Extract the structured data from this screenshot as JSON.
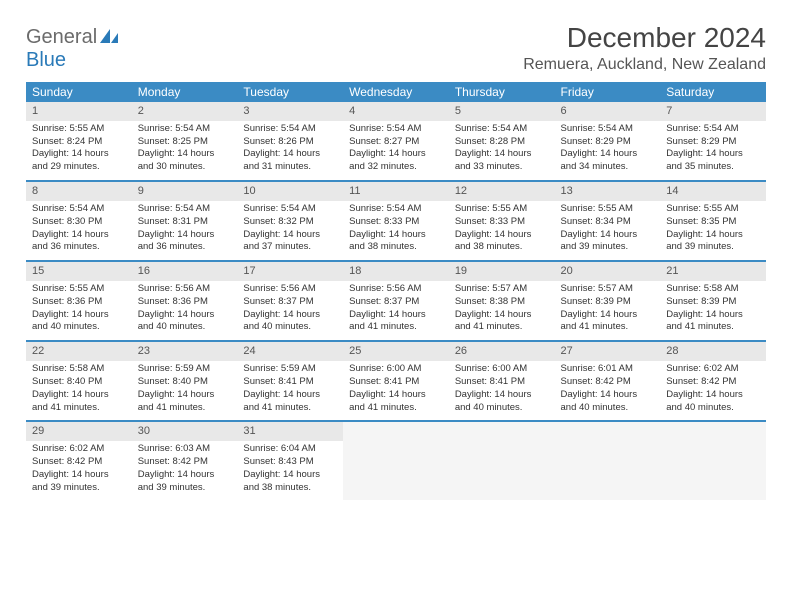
{
  "logo": {
    "text1": "General",
    "text2": "Blue"
  },
  "title": "December 2024",
  "location": "Remuera, Auckland, New Zealand",
  "colors": {
    "header_bg": "#3b8bc4",
    "header_text": "#ffffff",
    "border": "#3b8bc4",
    "daynum_bg": "#e8e8e8",
    "body_bg": "#ffffff",
    "logo_gray": "#6b6b6b",
    "logo_blue": "#2a7ab8"
  },
  "weekdays": [
    "Sunday",
    "Monday",
    "Tuesday",
    "Wednesday",
    "Thursday",
    "Friday",
    "Saturday"
  ],
  "days": [
    {
      "n": "1",
      "sr": "Sunrise: 5:55 AM",
      "ss": "Sunset: 8:24 PM",
      "dl": "Daylight: 14 hours and 29 minutes."
    },
    {
      "n": "2",
      "sr": "Sunrise: 5:54 AM",
      "ss": "Sunset: 8:25 PM",
      "dl": "Daylight: 14 hours and 30 minutes."
    },
    {
      "n": "3",
      "sr": "Sunrise: 5:54 AM",
      "ss": "Sunset: 8:26 PM",
      "dl": "Daylight: 14 hours and 31 minutes."
    },
    {
      "n": "4",
      "sr": "Sunrise: 5:54 AM",
      "ss": "Sunset: 8:27 PM",
      "dl": "Daylight: 14 hours and 32 minutes."
    },
    {
      "n": "5",
      "sr": "Sunrise: 5:54 AM",
      "ss": "Sunset: 8:28 PM",
      "dl": "Daylight: 14 hours and 33 minutes."
    },
    {
      "n": "6",
      "sr": "Sunrise: 5:54 AM",
      "ss": "Sunset: 8:29 PM",
      "dl": "Daylight: 14 hours and 34 minutes."
    },
    {
      "n": "7",
      "sr": "Sunrise: 5:54 AM",
      "ss": "Sunset: 8:29 PM",
      "dl": "Daylight: 14 hours and 35 minutes."
    },
    {
      "n": "8",
      "sr": "Sunrise: 5:54 AM",
      "ss": "Sunset: 8:30 PM",
      "dl": "Daylight: 14 hours and 36 minutes."
    },
    {
      "n": "9",
      "sr": "Sunrise: 5:54 AM",
      "ss": "Sunset: 8:31 PM",
      "dl": "Daylight: 14 hours and 36 minutes."
    },
    {
      "n": "10",
      "sr": "Sunrise: 5:54 AM",
      "ss": "Sunset: 8:32 PM",
      "dl": "Daylight: 14 hours and 37 minutes."
    },
    {
      "n": "11",
      "sr": "Sunrise: 5:54 AM",
      "ss": "Sunset: 8:33 PM",
      "dl": "Daylight: 14 hours and 38 minutes."
    },
    {
      "n": "12",
      "sr": "Sunrise: 5:55 AM",
      "ss": "Sunset: 8:33 PM",
      "dl": "Daylight: 14 hours and 38 minutes."
    },
    {
      "n": "13",
      "sr": "Sunrise: 5:55 AM",
      "ss": "Sunset: 8:34 PM",
      "dl": "Daylight: 14 hours and 39 minutes."
    },
    {
      "n": "14",
      "sr": "Sunrise: 5:55 AM",
      "ss": "Sunset: 8:35 PM",
      "dl": "Daylight: 14 hours and 39 minutes."
    },
    {
      "n": "15",
      "sr": "Sunrise: 5:55 AM",
      "ss": "Sunset: 8:36 PM",
      "dl": "Daylight: 14 hours and 40 minutes."
    },
    {
      "n": "16",
      "sr": "Sunrise: 5:56 AM",
      "ss": "Sunset: 8:36 PM",
      "dl": "Daylight: 14 hours and 40 minutes."
    },
    {
      "n": "17",
      "sr": "Sunrise: 5:56 AM",
      "ss": "Sunset: 8:37 PM",
      "dl": "Daylight: 14 hours and 40 minutes."
    },
    {
      "n": "18",
      "sr": "Sunrise: 5:56 AM",
      "ss": "Sunset: 8:37 PM",
      "dl": "Daylight: 14 hours and 41 minutes."
    },
    {
      "n": "19",
      "sr": "Sunrise: 5:57 AM",
      "ss": "Sunset: 8:38 PM",
      "dl": "Daylight: 14 hours and 41 minutes."
    },
    {
      "n": "20",
      "sr": "Sunrise: 5:57 AM",
      "ss": "Sunset: 8:39 PM",
      "dl": "Daylight: 14 hours and 41 minutes."
    },
    {
      "n": "21",
      "sr": "Sunrise: 5:58 AM",
      "ss": "Sunset: 8:39 PM",
      "dl": "Daylight: 14 hours and 41 minutes."
    },
    {
      "n": "22",
      "sr": "Sunrise: 5:58 AM",
      "ss": "Sunset: 8:40 PM",
      "dl": "Daylight: 14 hours and 41 minutes."
    },
    {
      "n": "23",
      "sr": "Sunrise: 5:59 AM",
      "ss": "Sunset: 8:40 PM",
      "dl": "Daylight: 14 hours and 41 minutes."
    },
    {
      "n": "24",
      "sr": "Sunrise: 5:59 AM",
      "ss": "Sunset: 8:41 PM",
      "dl": "Daylight: 14 hours and 41 minutes."
    },
    {
      "n": "25",
      "sr": "Sunrise: 6:00 AM",
      "ss": "Sunset: 8:41 PM",
      "dl": "Daylight: 14 hours and 41 minutes."
    },
    {
      "n": "26",
      "sr": "Sunrise: 6:00 AM",
      "ss": "Sunset: 8:41 PM",
      "dl": "Daylight: 14 hours and 40 minutes."
    },
    {
      "n": "27",
      "sr": "Sunrise: 6:01 AM",
      "ss": "Sunset: 8:42 PM",
      "dl": "Daylight: 14 hours and 40 minutes."
    },
    {
      "n": "28",
      "sr": "Sunrise: 6:02 AM",
      "ss": "Sunset: 8:42 PM",
      "dl": "Daylight: 14 hours and 40 minutes."
    },
    {
      "n": "29",
      "sr": "Sunrise: 6:02 AM",
      "ss": "Sunset: 8:42 PM",
      "dl": "Daylight: 14 hours and 39 minutes."
    },
    {
      "n": "30",
      "sr": "Sunrise: 6:03 AM",
      "ss": "Sunset: 8:42 PM",
      "dl": "Daylight: 14 hours and 39 minutes."
    },
    {
      "n": "31",
      "sr": "Sunrise: 6:04 AM",
      "ss": "Sunset: 8:43 PM",
      "dl": "Daylight: 14 hours and 38 minutes."
    }
  ]
}
